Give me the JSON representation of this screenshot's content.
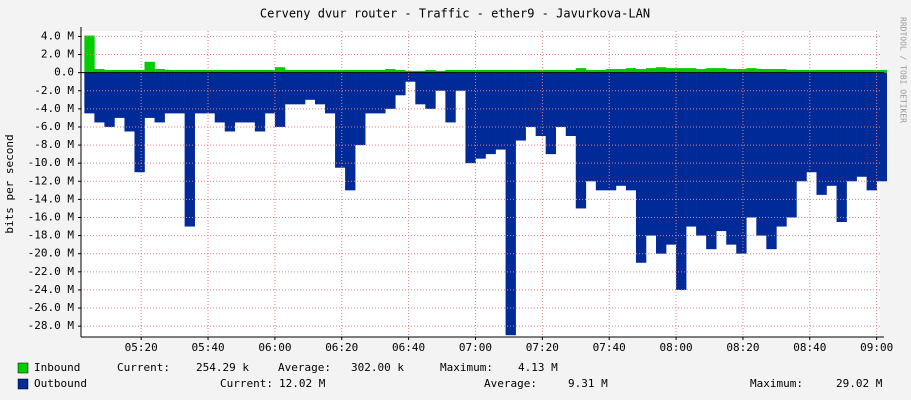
{
  "chart_data": {
    "type": "area",
    "title": "Cerveny dvur router - Traffic - ether9 - Javurkova-LAN",
    "y_label": "bits per second",
    "side_note": "RRDTOOL / TOBI OETIKER",
    "x": [
      "05:03",
      "05:06",
      "05:09",
      "05:12",
      "05:15",
      "05:18",
      "05:21",
      "05:24",
      "05:27",
      "05:30",
      "05:33",
      "05:36",
      "05:39",
      "05:42",
      "05:45",
      "05:48",
      "05:51",
      "05:54",
      "05:57",
      "06:00",
      "06:03",
      "06:06",
      "06:09",
      "06:12",
      "06:15",
      "06:18",
      "06:21",
      "06:24",
      "06:27",
      "06:30",
      "06:33",
      "06:36",
      "06:39",
      "06:42",
      "06:45",
      "06:48",
      "06:51",
      "06:54",
      "06:57",
      "07:00",
      "07:03",
      "07:06",
      "07:09",
      "07:12",
      "07:15",
      "07:18",
      "07:21",
      "07:24",
      "07:27",
      "07:30",
      "07:33",
      "07:36",
      "07:39",
      "07:42",
      "07:45",
      "07:48",
      "07:51",
      "07:54",
      "07:57",
      "08:00",
      "08:03",
      "08:06",
      "08:09",
      "08:12",
      "08:15",
      "08:18",
      "08:21",
      "08:24",
      "08:27",
      "08:30",
      "08:33",
      "08:36",
      "08:39",
      "08:42",
      "08:45",
      "08:48",
      "08:51",
      "08:54",
      "08:57",
      "09:00"
    ],
    "xlim": [
      "05:02",
      "09:01"
    ],
    "xticks": [
      "05:20",
      "05:40",
      "06:00",
      "06:20",
      "06:40",
      "07:00",
      "07:20",
      "07:40",
      "08:00",
      "08:20",
      "08:40",
      "09:00"
    ],
    "ylim": [
      -29200000,
      4600000
    ],
    "yticks": [
      {
        "value": 4000000,
        "label": "4.0 M"
      },
      {
        "value": 2000000,
        "label": "2.0 M"
      },
      {
        "value": 0,
        "label": "0.0"
      },
      {
        "value": -2000000,
        "label": "-2.0 M"
      },
      {
        "value": -4000000,
        "label": "-4.0 M"
      },
      {
        "value": -6000000,
        "label": "-6.0 M"
      },
      {
        "value": -8000000,
        "label": "-8.0 M"
      },
      {
        "value": -10000000,
        "label": "-10.0 M"
      },
      {
        "value": -12000000,
        "label": "-12.0 M"
      },
      {
        "value": -14000000,
        "label": "-14.0 M"
      },
      {
        "value": -16000000,
        "label": "-16.0 M"
      },
      {
        "value": -18000000,
        "label": "-18.0 M"
      },
      {
        "value": -20000000,
        "label": "-20.0 M"
      },
      {
        "value": -22000000,
        "label": "-22.0 M"
      },
      {
        "value": -24000000,
        "label": "-24.0 M"
      },
      {
        "value": -26000000,
        "label": "-26.0 M"
      },
      {
        "value": -28000000,
        "label": "-28.0 M"
      }
    ],
    "grid": true,
    "series": [
      {
        "name": "Inbound",
        "color": "#00cc00",
        "values": [
          4100000,
          400000,
          300000,
          300000,
          300000,
          300000,
          1200000,
          400000,
          300000,
          300000,
          300000,
          300000,
          300000,
          300000,
          300000,
          300000,
          300000,
          300000,
          300000,
          600000,
          300000,
          300000,
          300000,
          300000,
          300000,
          300000,
          300000,
          300000,
          300000,
          300000,
          400000,
          300000,
          200000,
          200000,
          300000,
          200000,
          300000,
          300000,
          300000,
          300000,
          300000,
          300000,
          300000,
          300000,
          300000,
          300000,
          300000,
          300000,
          300000,
          500000,
          300000,
          300000,
          400000,
          400000,
          500000,
          400000,
          500000,
          600000,
          500000,
          500000,
          500000,
          400000,
          500000,
          500000,
          400000,
          400000,
          500000,
          400000,
          400000,
          400000,
          300000,
          300000,
          300000,
          300000,
          300000,
          300000,
          300000,
          300000,
          300000,
          300000
        ],
        "stats": [
          {
            "label": "Current:",
            "value": "254.29 k"
          },
          {
            "label": "Average:",
            "value": "302.00 k"
          },
          {
            "label": "Maximum:",
            "value": "4.13 M"
          }
        ]
      },
      {
        "name": "Outbound",
        "color": "#002a97",
        "values": [
          -4500000,
          -5500000,
          -6000000,
          -5000000,
          -6500000,
          -11000000,
          -5000000,
          -5500000,
          -4500000,
          -4500000,
          -17000000,
          -4500000,
          -4500000,
          -5500000,
          -6500000,
          -5500000,
          -5500000,
          -6500000,
          -4500000,
          -6000000,
          -3500000,
          -3500000,
          -3000000,
          -3500000,
          -4500000,
          -10500000,
          -13000000,
          -8000000,
          -4500000,
          -4500000,
          -4000000,
          -2500000,
          -1000000,
          -3500000,
          -4000000,
          -2000000,
          -5500000,
          -2000000,
          -10000000,
          -9500000,
          -9000000,
          -8500000,
          -29000000,
          -7500000,
          -6000000,
          -7000000,
          -9000000,
          -6000000,
          -7000000,
          -15000000,
          -12000000,
          -13000000,
          -13000000,
          -12500000,
          -13000000,
          -21000000,
          -18000000,
          -20000000,
          -19000000,
          -24000000,
          -17000000,
          -18000000,
          -19500000,
          -17500000,
          -19000000,
          -20000000,
          -16000000,
          -18000000,
          -19500000,
          -17000000,
          -16000000,
          -12000000,
          -11000000,
          -13500000,
          -12500000,
          -16500000,
          -12000000,
          -11500000,
          -13000000,
          -12000000
        ],
        "stats": [
          {
            "label": "Current:",
            "value": "12.02 M"
          },
          {
            "label": "Average:",
            "value": "9.31 M"
          },
          {
            "label": "Maximum:",
            "value": "29.02 M"
          }
        ]
      }
    ]
  }
}
